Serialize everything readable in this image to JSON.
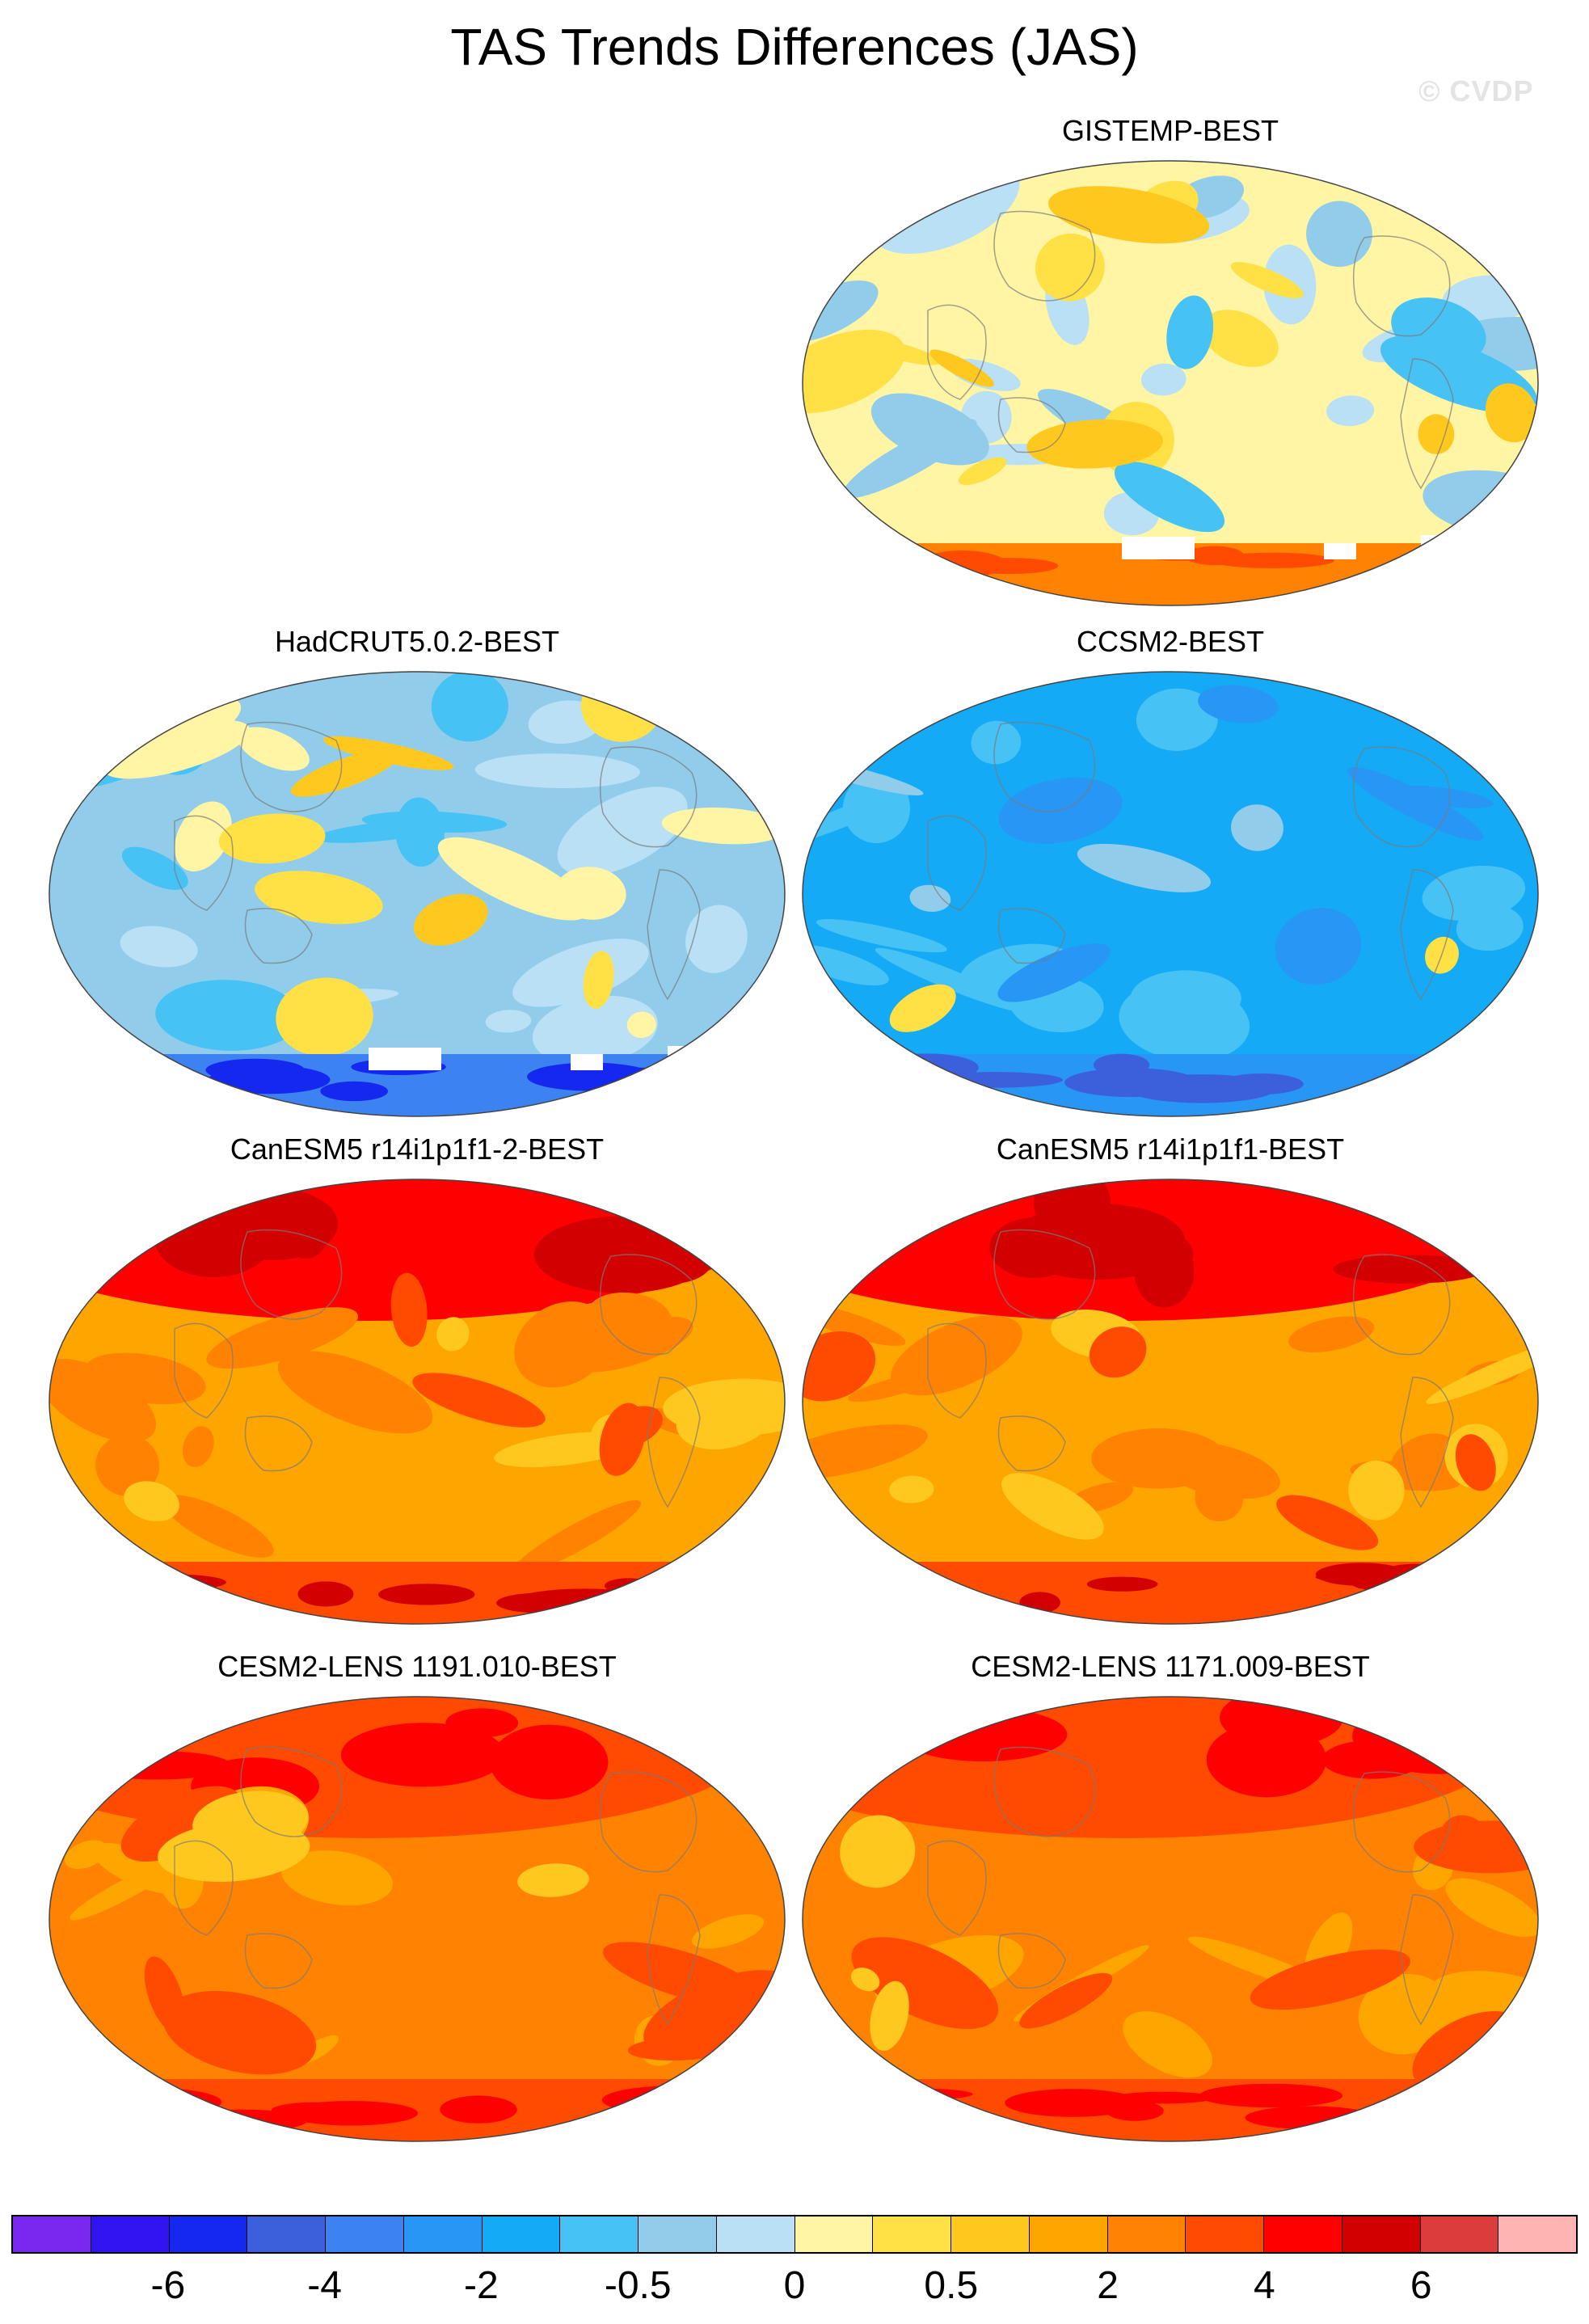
{
  "title": "TAS Trends Differences (JAS)",
  "watermark": "© CVDP",
  "panels": [
    {
      "title": "GISTEMP-BEST",
      "scheme": "mixed_warm",
      "antarctic_gaps": true
    },
    {
      "title": "HadCRUT5.0.2-BEST",
      "scheme": "mixed_cool",
      "antarctic_gaps": true
    },
    {
      "title": "CCSM2-BEST",
      "scheme": "cool",
      "antarctic_gaps": false
    },
    {
      "title": "CanESM5 r14i1p1f1-2-BEST",
      "scheme": "hot",
      "antarctic_gaps": false
    },
    {
      "title": "CanESM5 r14i1p1f1-BEST",
      "scheme": "hot",
      "antarctic_gaps": false
    },
    {
      "title": "CESM2-LENS 1191.010-BEST",
      "scheme": "hot2",
      "antarctic_gaps": false
    },
    {
      "title": "CESM2-LENS 1171.009-BEST",
      "scheme": "hot2",
      "antarctic_gaps": false
    }
  ],
  "colorbar": {
    "colors": [
      "#7a28f0",
      "#3214f2",
      "#1428f0",
      "#3c60dc",
      "#3c82f0",
      "#2896f5",
      "#14aaf5",
      "#46c2f5",
      "#91cdeb",
      "#b9e0f5",
      "#fff5a5",
      "#ffe146",
      "#ffc81e",
      "#ffa500",
      "#ff8200",
      "#ff4b00",
      "#ff0000",
      "#d20000",
      "#dc3c3c",
      "#ffb4b4"
    ],
    "labels": [
      "-6",
      "-4",
      "-2",
      "-0.5",
      "0",
      "0.5",
      "2",
      "4",
      "6"
    ],
    "label_boundaries": [
      2,
      4,
      6,
      8,
      10,
      12,
      14,
      16,
      18
    ]
  }
}
